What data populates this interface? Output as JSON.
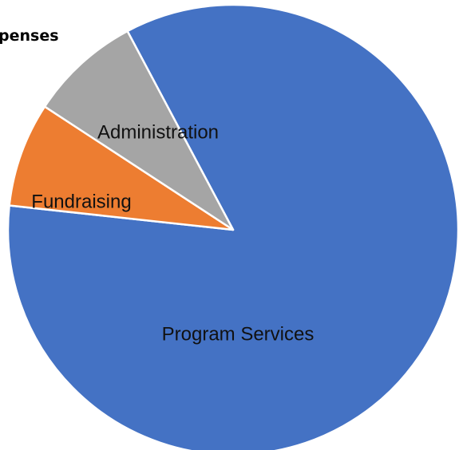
{
  "chart_data": {
    "type": "pie",
    "title": "penses",
    "slices": [
      {
        "label": "Program Services",
        "value": 84.5,
        "color": "#4472C4"
      },
      {
        "label": "Fundraising",
        "value": 7.5,
        "color": "#ED7D31"
      },
      {
        "label": "Administration",
        "value": 8.0,
        "color": "#A5A5A5"
      }
    ],
    "legend": "none",
    "data_labels": "category names inside slices"
  }
}
